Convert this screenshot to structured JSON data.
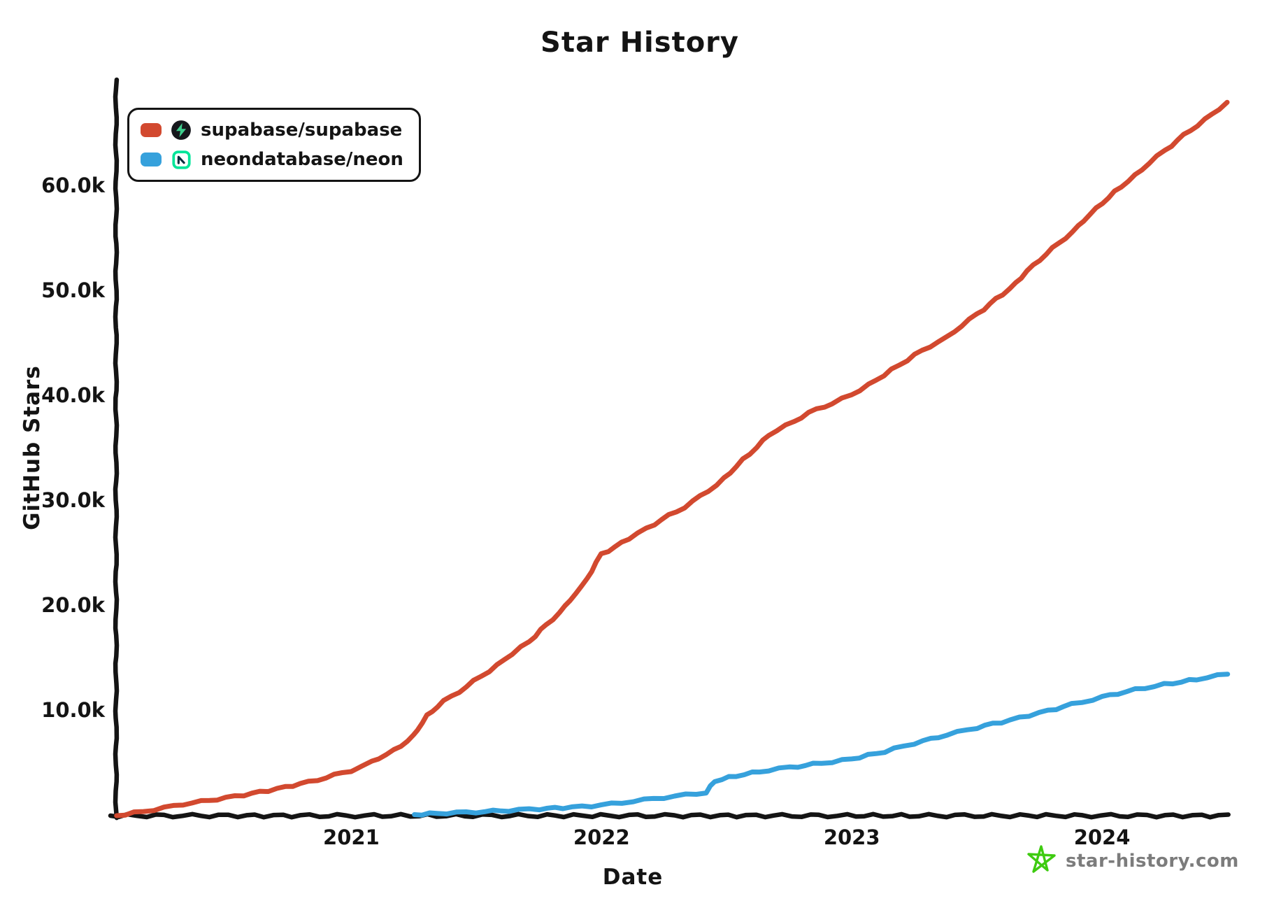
{
  "title": "Star History",
  "legend": {
    "items": [
      {
        "label": "supabase/supabase",
        "color": "#d2492f",
        "icon": "supabase-logo"
      },
      {
        "label": "neondatabase/neon",
        "color": "#36a1dc",
        "icon": "neon-logo"
      }
    ]
  },
  "brand": {
    "text": "star-history.com",
    "text_color": "#7c7c7c",
    "star_color": "#3ecb10"
  },
  "colors": {
    "ink": "#141414",
    "supabase_line": "#d2492f",
    "neon_line": "#36a1dc",
    "supabase_logo_green": "#3ecf8e",
    "neon_logo_green": "#00e599"
  },
  "chart_data": {
    "type": "line",
    "title": "Star History",
    "xlabel": "Date",
    "ylabel": "GitHub Stars",
    "grid": false,
    "legend_position": "top-left",
    "xlim": [
      2020.06,
      2024.5
    ],
    "ylim": [
      0,
      70000
    ],
    "x_ticks": [
      {
        "value": 2021,
        "label": "2021"
      },
      {
        "value": 2022,
        "label": "2022"
      },
      {
        "value": 2023,
        "label": "2023"
      },
      {
        "value": 2024,
        "label": "2024"
      }
    ],
    "y_ticks": [
      {
        "value": 10000,
        "label": "10.0k"
      },
      {
        "value": 20000,
        "label": "20.0k"
      },
      {
        "value": 30000,
        "label": "30.0k"
      },
      {
        "value": 40000,
        "label": "40.0k"
      },
      {
        "value": 50000,
        "label": "50.0k"
      },
      {
        "value": 60000,
        "label": "60.0k"
      }
    ],
    "series": [
      {
        "name": "supabase/supabase",
        "color": "#d2492f",
        "x_unit": "decimal_year",
        "y_unit": "stars",
        "points": [
          [
            2020.06,
            0
          ],
          [
            2020.17,
            400
          ],
          [
            2020.33,
            1100
          ],
          [
            2020.5,
            1700
          ],
          [
            2020.67,
            2400
          ],
          [
            2020.83,
            3200
          ],
          [
            2021.0,
            4300
          ],
          [
            2021.08,
            5100
          ],
          [
            2021.17,
            6200
          ],
          [
            2021.25,
            7600
          ],
          [
            2021.3,
            9500
          ],
          [
            2021.37,
            10900
          ],
          [
            2021.46,
            12300
          ],
          [
            2021.58,
            14300
          ],
          [
            2021.71,
            16600
          ],
          [
            2021.83,
            19300
          ],
          [
            2021.92,
            21800
          ],
          [
            2022.0,
            24900
          ],
          [
            2022.08,
            26000
          ],
          [
            2022.21,
            27800
          ],
          [
            2022.33,
            29400
          ],
          [
            2022.46,
            31500
          ],
          [
            2022.54,
            33300
          ],
          [
            2022.67,
            36300
          ],
          [
            2022.83,
            38400
          ],
          [
            2022.92,
            39300
          ],
          [
            2023.0,
            40100
          ],
          [
            2023.13,
            42000
          ],
          [
            2023.25,
            43900
          ],
          [
            2023.38,
            45600
          ],
          [
            2023.5,
            47800
          ],
          [
            2023.63,
            50200
          ],
          [
            2023.75,
            53000
          ],
          [
            2023.88,
            55600
          ],
          [
            2024.0,
            58400
          ],
          [
            2024.13,
            61000
          ],
          [
            2024.25,
            63400
          ],
          [
            2024.38,
            65800
          ],
          [
            2024.5,
            67900
          ]
        ]
      },
      {
        "name": "neondatabase/neon",
        "color": "#36a1dc",
        "x_unit": "decimal_year",
        "y_unit": "stars",
        "points": [
          [
            2021.25,
            100
          ],
          [
            2021.38,
            250
          ],
          [
            2021.5,
            350
          ],
          [
            2021.63,
            500
          ],
          [
            2021.75,
            650
          ],
          [
            2021.88,
            800
          ],
          [
            2022.0,
            1000
          ],
          [
            2022.08,
            1250
          ],
          [
            2022.17,
            1500
          ],
          [
            2022.29,
            1850
          ],
          [
            2022.38,
            2100
          ],
          [
            2022.42,
            2200
          ],
          [
            2022.45,
            3300
          ],
          [
            2022.54,
            3800
          ],
          [
            2022.63,
            4200
          ],
          [
            2022.75,
            4600
          ],
          [
            2022.88,
            5000
          ],
          [
            2023.0,
            5400
          ],
          [
            2023.13,
            6100
          ],
          [
            2023.25,
            6900
          ],
          [
            2023.38,
            7700
          ],
          [
            2023.5,
            8400
          ],
          [
            2023.63,
            9100
          ],
          [
            2023.75,
            9800
          ],
          [
            2023.88,
            10600
          ],
          [
            2024.0,
            11300
          ],
          [
            2024.13,
            12000
          ],
          [
            2024.25,
            12500
          ],
          [
            2024.38,
            13000
          ],
          [
            2024.5,
            13500
          ]
        ]
      }
    ]
  }
}
